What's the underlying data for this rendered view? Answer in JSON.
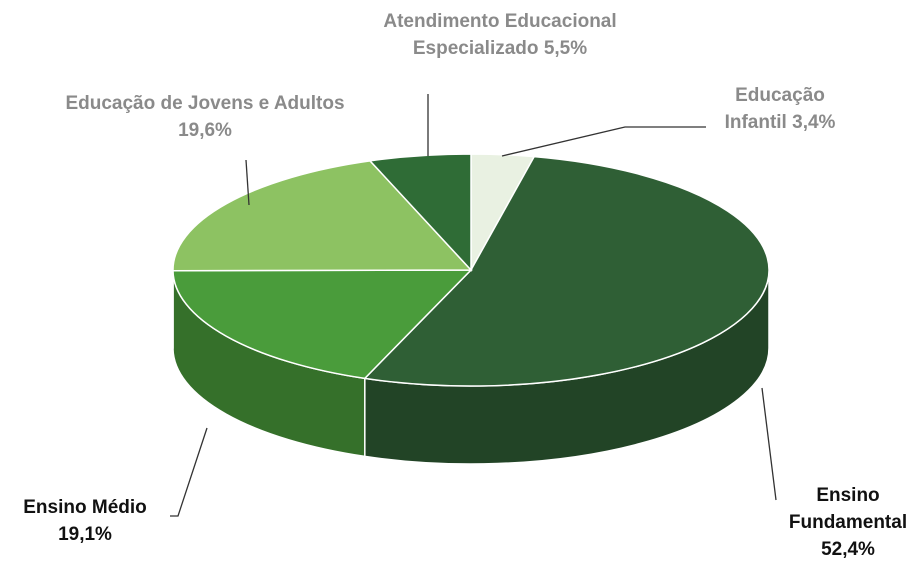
{
  "chart_data": {
    "type": "pie",
    "categories": [
      "Educação Infantil",
      "Ensino Fundamental",
      "Ensino Médio",
      "Educação de Jovens e Adultos",
      "Atendimento Educacional Especializado"
    ],
    "values": [
      3.4,
      52.4,
      19.1,
      19.6,
      5.5
    ],
    "value_labels": [
      "3,4%",
      "52,4%",
      "19,1%",
      "19,6%",
      "5,5%"
    ],
    "colors": [
      "#e9f1e2",
      "#2f5f35",
      "#4a9c3b",
      "#8dc262",
      "#2f6c36"
    ]
  }
}
